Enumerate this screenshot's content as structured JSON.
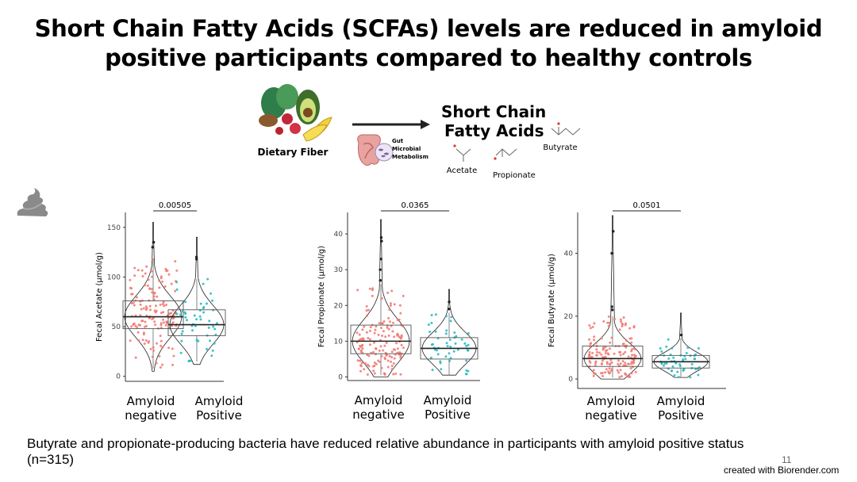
{
  "slide": {
    "title": "Short Chain Fatty Acids (SCFAs) levels are reduced in amyloid positive participants compared to healthy controls",
    "caption": "Butyrate and propionate-producing bacteria have reduced relative abundance in participants with amyloid positive status (n=315)",
    "slide_number": "11",
    "credit": "created with Biorender.com"
  },
  "schematic": {
    "food_label": "Dietary Fiber",
    "gut_label_lines": [
      "Gut",
      "Microbial",
      "Metabolism"
    ],
    "scfa_title_lines": [
      "Short Chain",
      "Fatty Acids"
    ],
    "molecules": [
      "Acetate",
      "Propionate",
      "Butyrate"
    ],
    "icons": [
      "fiber-food-icon",
      "arrow-icon",
      "gut-icon",
      "microbe-icon",
      "poop-icon"
    ]
  },
  "colors": {
    "negative": "#F0766D",
    "positive": "#1FB8BF"
  },
  "chart_data": [
    {
      "type": "violin-box-jitter",
      "ylabel": "Fecal Acetate (µmol/g)",
      "categories": [
        "Amyloid\nnegative",
        "Amyloid\nPositive"
      ],
      "yticks": [
        0,
        50,
        100,
        150
      ],
      "ylim": [
        -5,
        165
      ],
      "pvalue": "0.00505",
      "groups": [
        {
          "q1": 48,
          "median": 60,
          "q3": 76,
          "wlo": 8,
          "whi": 118,
          "min": 5,
          "max": 155,
          "n": 150,
          "outliers": [
            130,
            135
          ]
        },
        {
          "q1": 41,
          "median": 52,
          "q3": 67,
          "wlo": 15,
          "whi": 98,
          "min": 12,
          "max": 140,
          "n": 50,
          "outliers": [
            118,
            120
          ]
        }
      ]
    },
    {
      "type": "violin-box-jitter",
      "ylabel": "Fecal Propionate (µmol/g)",
      "categories": [
        "Amyloid\nnegative",
        "Amyloid\nPositive"
      ],
      "yticks": [
        0,
        10,
        20,
        30,
        40
      ],
      "ylim": [
        -1,
        46
      ],
      "pvalue": "0.0365",
      "groups": [
        {
          "q1": 6.5,
          "median": 10,
          "q3": 14.5,
          "wlo": 0.5,
          "whi": 26,
          "min": 0,
          "max": 44,
          "n": 150,
          "outliers": [
            30,
            27,
            33,
            38,
            39
          ]
        },
        {
          "q1": 5,
          "median": 8,
          "q3": 11,
          "wlo": 0.5,
          "whi": 18,
          "min": 0.5,
          "max": 24.5,
          "n": 50,
          "outliers": [
            19,
            21
          ]
        }
      ]
    },
    {
      "type": "violin-box-jitter",
      "ylabel": "Fecal Butyrate (µmol/g)",
      "categories": [
        "Amyloid\nnegative",
        "Amyloid\nPositive"
      ],
      "yticks": [
        0,
        20,
        40
      ],
      "ylim": [
        -3,
        53
      ],
      "pvalue": "0.0501",
      "groups": [
        {
          "q1": 4,
          "median": 6.5,
          "q3": 10.5,
          "wlo": 0.5,
          "whi": 20,
          "min": 0,
          "max": 52,
          "n": 150,
          "outliers": [
            22,
            23,
            40,
            47
          ]
        },
        {
          "q1": 3.5,
          "median": 5.5,
          "q3": 7.5,
          "wlo": 0.5,
          "whi": 13,
          "min": 0.5,
          "max": 21,
          "n": 50,
          "outliers": [
            14
          ]
        }
      ]
    }
  ]
}
